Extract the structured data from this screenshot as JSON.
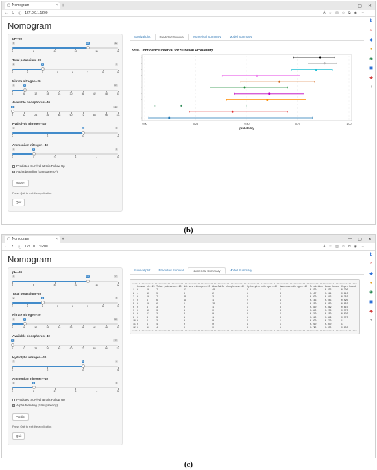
{
  "browser": {
    "tab_title": "Nomogram",
    "url": "127.0.0.1:1200",
    "zoom_badge": "À",
    "new_tab": "+",
    "tab_close": "×"
  },
  "app_title": "Nomogram",
  "tabs": [
    "Survival plot",
    "Predicted Survival",
    "Numerical Summary",
    "Model Summary"
  ],
  "panel_b_active_tab": "Predicted Survival",
  "panel_c_active_tab": "Numerical Summary",
  "sliders": [
    {
      "label": "pH--20",
      "min": 5,
      "max": 12,
      "value": 10,
      "ticks": [
        "5",
        "6",
        "8",
        "10",
        "11",
        "12"
      ]
    },
    {
      "label": "Total potassium--20",
      "min": 2,
      "max": 9,
      "value": 4,
      "ticks": [
        "2",
        "3",
        "4",
        "5",
        "6",
        "7",
        "8",
        "9"
      ]
    },
    {
      "label": "Nitrate nitrogen--20",
      "min": 0,
      "max": 51,
      "value": 6,
      "ticks": [
        "0",
        "6",
        "12",
        "18",
        "24",
        "30",
        "36",
        "42",
        "48",
        "51"
      ]
    },
    {
      "label": "Available phosphorus--40",
      "min": 0,
      "max": 111,
      "value": 0,
      "ticks": [
        "0",
        "12",
        "24",
        "36",
        "48",
        "60",
        "72",
        "84",
        "96",
        "111"
      ]
    },
    {
      "label": "Hydrolytic nitrogen--40",
      "min": 1,
      "max": 4,
      "value": 3,
      "ticks": [
        "1",
        "2",
        "3",
        "4"
      ]
    },
    {
      "label": "Ammonium nitrogen--40",
      "min": 0,
      "max": 5,
      "value": 1,
      "ticks": [
        "0",
        "1",
        "2",
        "3",
        "4",
        "5"
      ]
    }
  ],
  "checkboxes": [
    {
      "label": "Predicted Survival at this Follow Up",
      "checked": false
    },
    {
      "label": "Alpha blending (transparency)",
      "checked": true
    }
  ],
  "predict_label": "Predict",
  "quit_note": "Press Quit to exit the application",
  "quit_label": "Quit",
  "chart_data": {
    "type": "scatter",
    "title": "95% Confidence Interval for Survival Probability",
    "xlabel": "probability",
    "xlim": [
      0,
      1
    ],
    "xticks": [
      "0.00",
      "0.25",
      "0.50",
      "0.75",
      "1.00"
    ],
    "points": [
      {
        "est": 0.86,
        "lo": 0.73,
        "hi": 0.93,
        "color": "#000000"
      },
      {
        "est": 0.88,
        "lo": 0.8,
        "hi": 0.94,
        "color": "#b0b0b0"
      },
      {
        "est": 0.84,
        "lo": 0.72,
        "hi": 0.92,
        "color": "#22c1d6"
      },
      {
        "est": 0.55,
        "lo": 0.38,
        "hi": 0.76,
        "color": "#ee82ee"
      },
      {
        "est": 0.66,
        "lo": 0.47,
        "hi": 0.83,
        "color": "#d2691e"
      },
      {
        "est": 0.49,
        "lo": 0.32,
        "hi": 0.7,
        "color": "#1e8c3a"
      },
      {
        "est": 0.61,
        "lo": 0.44,
        "hi": 0.78,
        "color": "#c000c0"
      },
      {
        "est": 0.6,
        "lo": 0.4,
        "hi": 0.79,
        "color": "#ff8c00"
      },
      {
        "est": 0.18,
        "lo": 0.05,
        "hi": 0.5,
        "color": "#2e8b57"
      },
      {
        "est": 0.43,
        "lo": 0.22,
        "hi": 0.7,
        "color": "#e03030"
      },
      {
        "est": 0.12,
        "lo": 0.02,
        "hi": 0.82,
        "color": "#1f77b4"
      }
    ]
  },
  "summary_table": {
    "headers": [
      "",
      "Lnswad",
      "pH--20",
      "Total potassium--20",
      "Nitrate nitrogen--20",
      "Available phosphorus--40",
      "Hydrolytic nitrogen--40",
      "Ammonium nitrogen--40",
      "Prediction",
      "Lower bound",
      "Upper bound"
    ],
    "rows": [
      [
        "1",
        "6",
        "10",
        "7",
        "13",
        "45",
        "3",
        "5",
        "0.630",
        "0.232",
        "0.790"
      ],
      [
        "2",
        "4",
        "10",
        "5",
        "8",
        "2",
        "1",
        "4",
        "0.187",
        "0.014",
        "0.810"
      ],
      [
        "3",
        "6",
        "10",
        "7",
        "25",
        "3",
        "3",
        "4",
        "0.390",
        "0.212",
        "0.750"
      ],
      [
        "4",
        "6",
        "9",
        "6",
        "19",
        "1",
        "2",
        "4",
        "0.163",
        "0.045",
        "0.590"
      ],
      [
        "5",
        "6",
        "10",
        "6",
        "1",
        "25",
        "2",
        "3",
        "0.550",
        "0.350",
        "0.850"
      ],
      [
        "6",
        "6",
        "9",
        "3",
        "0",
        "1",
        "1",
        "3",
        "0.810",
        "0.469",
        "0.810"
      ],
      [
        "7",
        "6",
        "10",
        "3",
        "1",
        "0",
        "1",
        "4",
        "0.440",
        "0.255",
        "0.770"
      ],
      [
        "8",
        "6",
        "12",
        "3",
        "2",
        "0",
        "2",
        "4",
        "0.710",
        "0.550",
        "0.820"
      ],
      [
        "9",
        "6",
        "9",
        "3",
        "1",
        "1",
        "1",
        "3",
        "0.910",
        "0.346",
        "0.770"
      ],
      [
        "10",
        "6",
        "9",
        "3",
        "0",
        "0",
        "4",
        "1",
        "0.890",
        "0.770",
        "1"
      ],
      [
        "11",
        "6",
        "9",
        "4",
        "0",
        "0",
        "4",
        "1",
        "0.910",
        "0.800",
        "1"
      ],
      [
        "12",
        "6",
        "11",
        "4",
        "5",
        "0",
        "3",
        "1",
        "0.790",
        "0.650",
        "0.850"
      ]
    ]
  },
  "captions": {
    "b": "(b)",
    "c": "(c)"
  }
}
